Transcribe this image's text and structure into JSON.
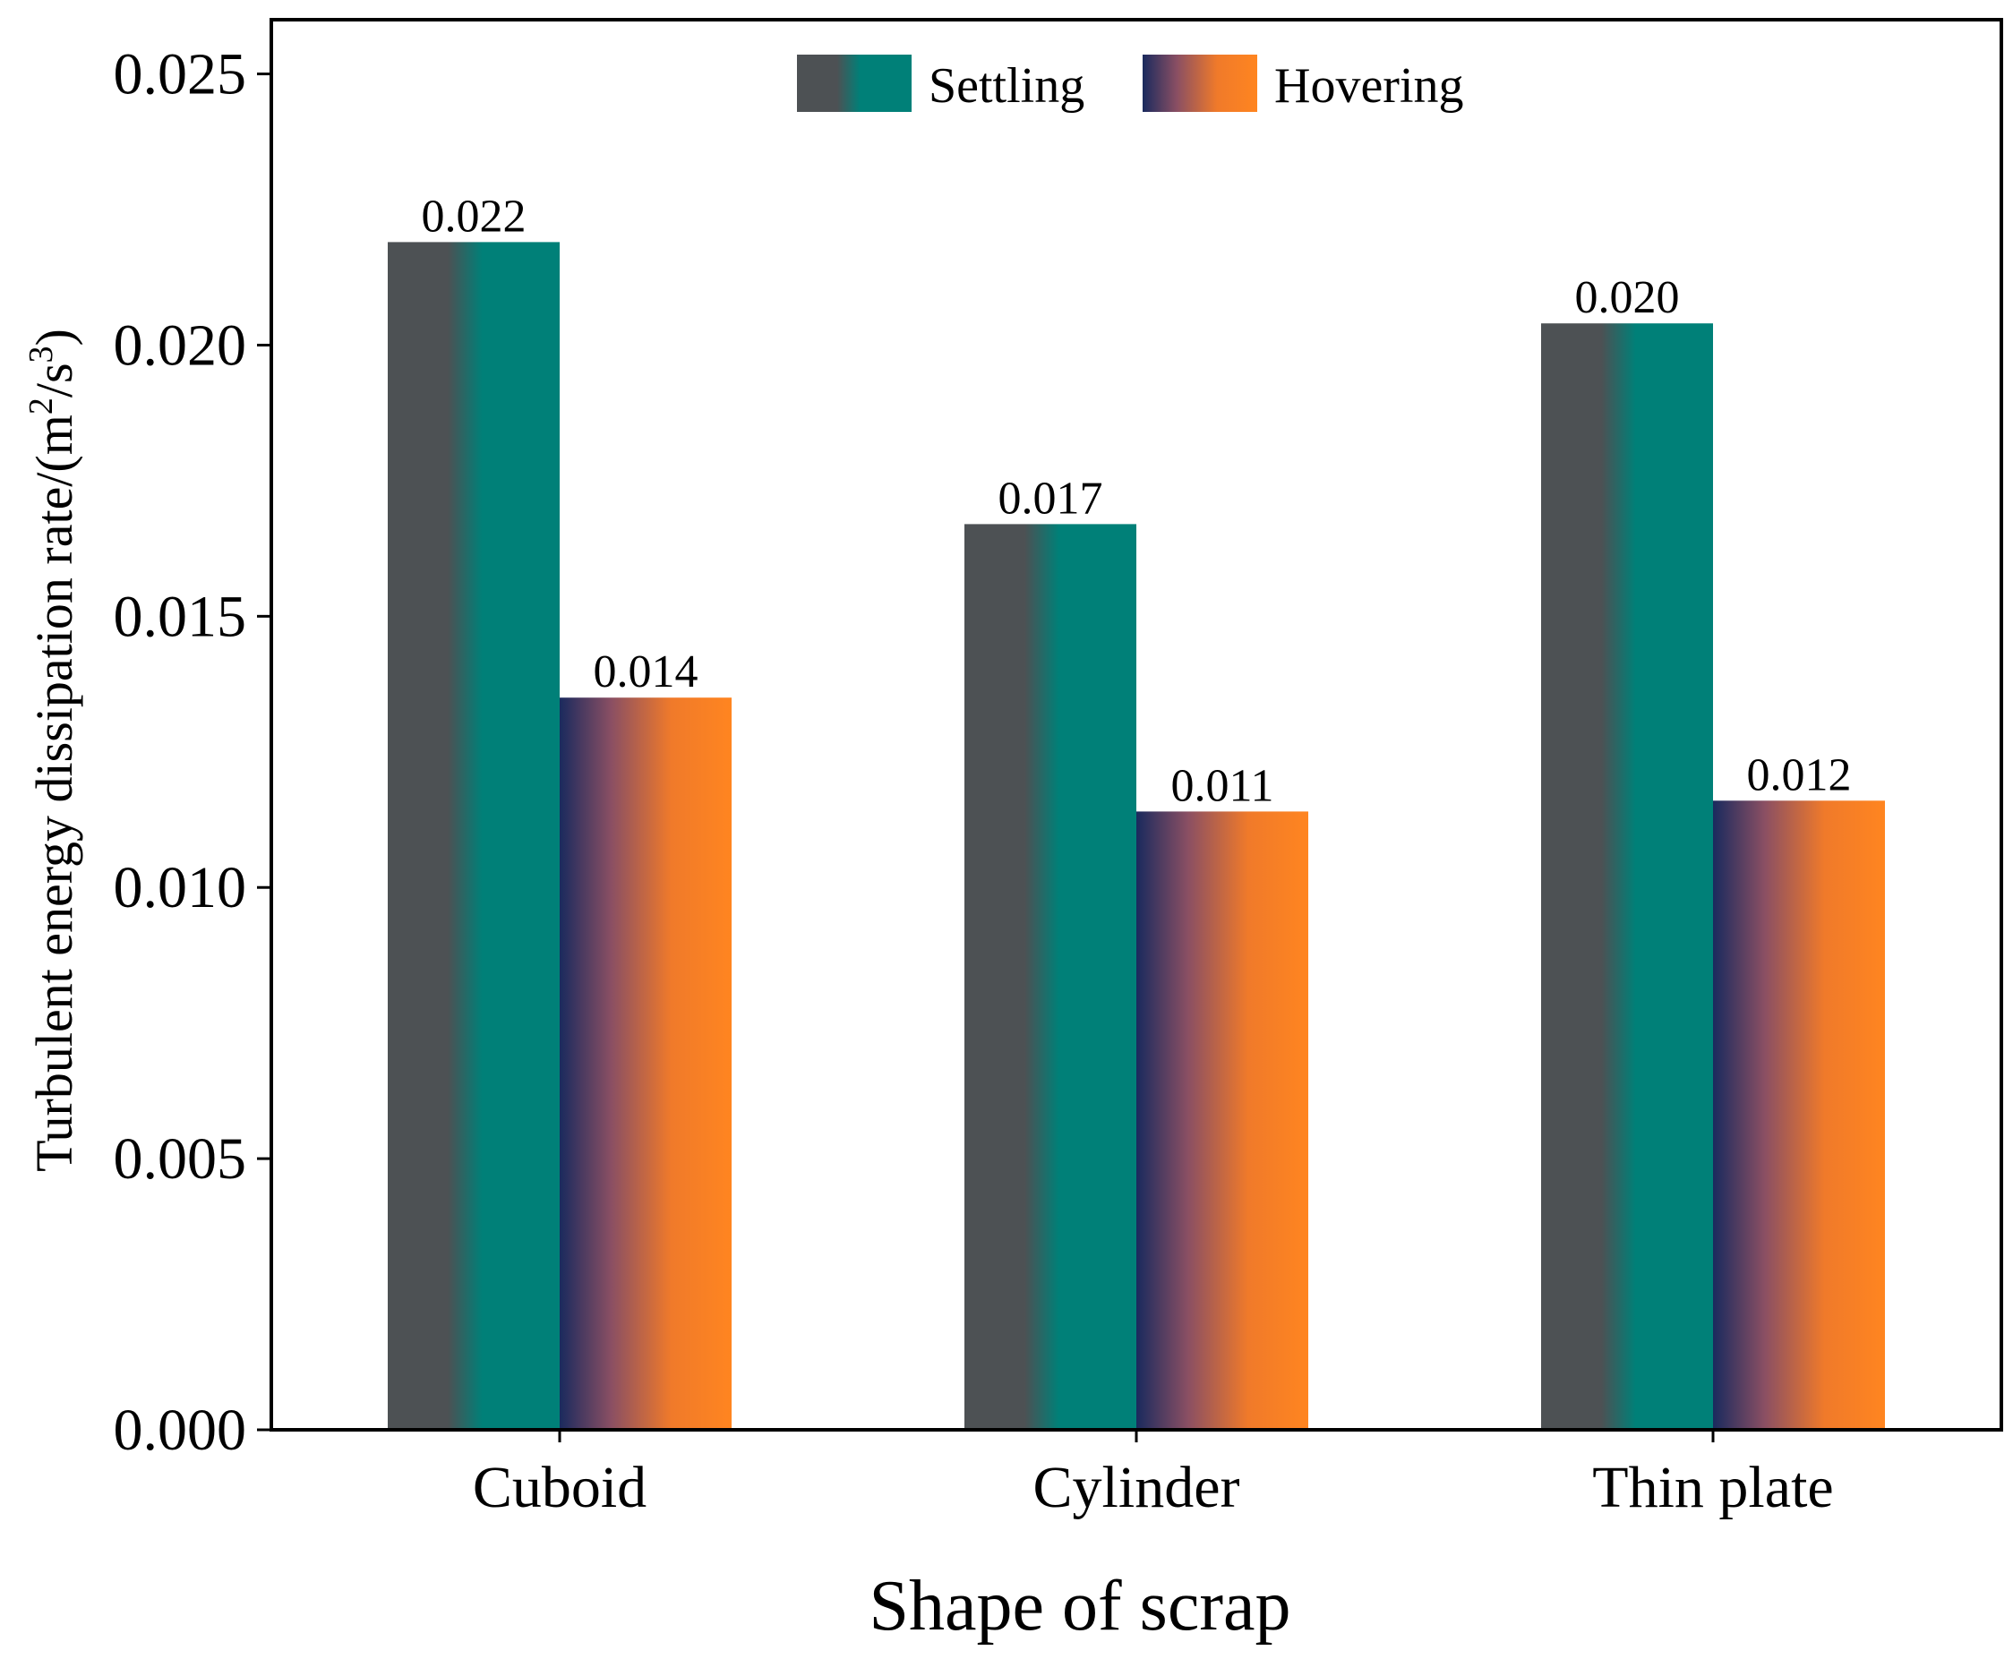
{
  "chart_data": {
    "type": "bar",
    "categories": [
      "Cuboid",
      "Cylinder",
      "Thin plate"
    ],
    "series": [
      {
        "name": "Settling",
        "values": [
          0.0219,
          0.0167,
          0.0204
        ],
        "labels": [
          "0.022",
          "0.017",
          "0.020"
        ],
        "gradient": [
          "#4d5154",
          "#4d5154",
          "#008078",
          "#008078"
        ]
      },
      {
        "name": "Hovering",
        "values": [
          0.0135,
          0.0114,
          0.0116
        ],
        "labels": [
          "0.014",
          "0.011",
          "0.012"
        ],
        "gradient": [
          "#1a2a5e",
          "#8a4f63",
          "#f07a2a",
          "#ff8520"
        ]
      }
    ],
    "xlabel": "Shape of scrap",
    "ylabel_main": "Turbulent energy dissipation rate/(m",
    "ylabel_sup1": "2",
    "ylabel_mid": "/s",
    "ylabel_sup2": "3",
    "ylabel_end": ")",
    "ylim": [
      0,
      0.026
    ],
    "yticks": [
      0.0,
      0.005,
      0.01,
      0.015,
      0.02,
      0.025
    ],
    "ytick_labels": [
      "0.000",
      "0.005",
      "0.010",
      "0.015",
      "0.020",
      "0.025"
    ],
    "legend_position": "top-center",
    "grid": false
  }
}
